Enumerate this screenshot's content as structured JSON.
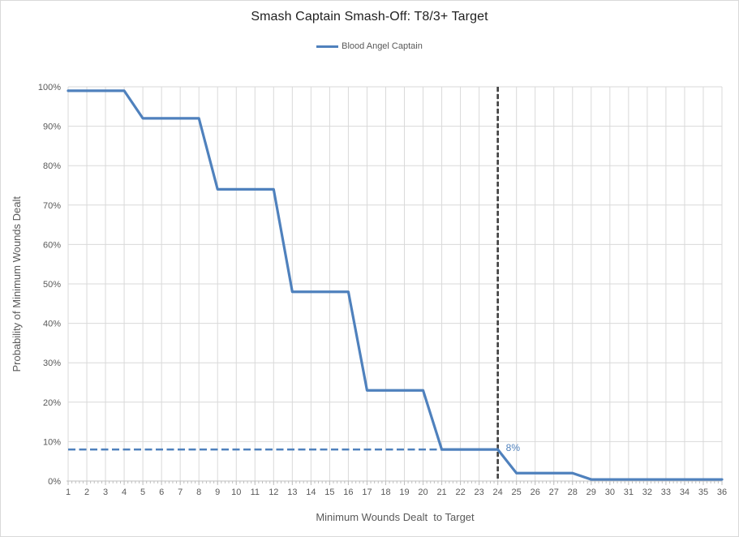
{
  "chart_data": {
    "type": "line",
    "title": "Smash Captain Smash-Off: T8/3+ Target",
    "xlabel": "Minimum Wounds Dealt  to Target",
    "ylabel": "Probability of Minimum Wounds Dealt",
    "x": [
      1,
      2,
      3,
      4,
      5,
      6,
      7,
      8,
      9,
      10,
      11,
      12,
      13,
      14,
      15,
      16,
      17,
      18,
      19,
      20,
      21,
      22,
      23,
      24,
      25,
      26,
      27,
      28,
      29,
      30,
      31,
      32,
      33,
      34,
      35,
      36
    ],
    "series": [
      {
        "name": "Blood Angel Captain",
        "color": "#4f81bd",
        "values": [
          99,
          99,
          99,
          99,
          92,
          92,
          92,
          92,
          74,
          74,
          74,
          74,
          48,
          48,
          48,
          48,
          23,
          23,
          23,
          23,
          8,
          8,
          8,
          8,
          2,
          2,
          2,
          2,
          0.4,
          0.4,
          0.4,
          0.4,
          0.4,
          0.4,
          0.4,
          0.4
        ]
      }
    ],
    "ylim": [
      0,
      100
    ],
    "ytick_step": 10,
    "ytick_suffix": "%",
    "grid": true,
    "legend_position": "top-center",
    "annotations": {
      "hline": {
        "y": 8,
        "x_from": 1,
        "x_to": 24,
        "style": "dashed",
        "color": "#4f81bd"
      },
      "vline": {
        "x": 24,
        "style": "dashed",
        "color": "#3f3f3f"
      },
      "point_label": {
        "text": "8%",
        "at_x": 24,
        "at_y": 8,
        "color": "#4f81bd"
      }
    },
    "colors": {
      "grid": "#d9d9d9",
      "axis": "#bfbfbf",
      "tick_label": "#595959",
      "title": "#1f1f1f",
      "axis_title": "#595959",
      "background": "#ffffff"
    }
  }
}
